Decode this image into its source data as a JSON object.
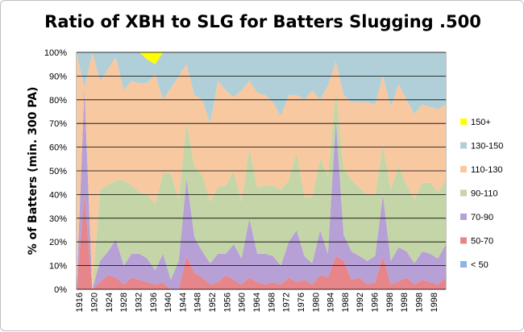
{
  "chart_data": {
    "type": "area",
    "stacked": true,
    "normalized": true,
    "title": "Ratio of XBH to SLG for Batters Slugging .500",
    "ylabel": "% of Batters (min. 300 PA)",
    "xlabel": "",
    "ylim": [
      0,
      100
    ],
    "yticks": [
      "0%",
      "10%",
      "20%",
      "30%",
      "40%",
      "50%",
      "60%",
      "70%",
      "80%",
      "90%",
      "100%"
    ],
    "xtick_labels": [
      "1916",
      "1920",
      "1924",
      "1928",
      "1932",
      "1936",
      "1940",
      "1944",
      "1948",
      "1952",
      "1956",
      "1960",
      "1964",
      "1968",
      "1972",
      "1976",
      "1980",
      "1984",
      "1988",
      "1992",
      "1996",
      "1998",
      "1998",
      "1998",
      "1998"
    ],
    "x": [
      1916,
      1918,
      1920,
      1922,
      1924,
      1926,
      1928,
      1930,
      1932,
      1934,
      1936,
      1938,
      1940,
      1942,
      1944,
      1946,
      1948,
      1950,
      1952,
      1954,
      1956,
      1958,
      1960,
      1962,
      1964,
      1966,
      1968,
      1970,
      1972,
      1974,
      1976,
      1978,
      1980,
      1982,
      1984,
      1986,
      1988,
      1990,
      1992,
      1994,
      1996,
      1998,
      2000,
      2002,
      2004,
      2006,
      2008,
      2010
    ],
    "grid": true,
    "legend_position": "right",
    "series": [
      {
        "name": "< 50",
        "color": "#8db4e2",
        "values": [
          0,
          0,
          0,
          0,
          0,
          0,
          0,
          0,
          0,
          0,
          0,
          0,
          0,
          0,
          0,
          0,
          0,
          0,
          0,
          0,
          0,
          0,
          0,
          0,
          0,
          0,
          0,
          0,
          0,
          0,
          0,
          0,
          0,
          0,
          0,
          0,
          0,
          0,
          0,
          0,
          0,
          0,
          0,
          0,
          0,
          0,
          0,
          0
        ]
      },
      {
        "name": "50-70",
        "color": "#e6858a",
        "values": [
          0,
          40,
          0,
          3,
          6,
          5,
          2,
          5,
          4,
          3,
          2,
          3,
          0,
          0,
          14,
          7,
          5,
          2,
          3,
          6,
          4,
          2,
          5,
          3,
          2,
          3,
          2,
          5,
          3,
          4,
          2,
          6,
          5,
          14,
          12,
          4,
          5,
          2,
          3,
          14,
          2,
          3,
          5,
          2,
          4,
          3,
          2,
          5
        ]
      },
      {
        "name": "70-90",
        "color": "#b6a0d6",
        "values": [
          0,
          45,
          0,
          9,
          10,
          16,
          8,
          10,
          11,
          10,
          6,
          12,
          4,
          12,
          33,
          15,
          11,
          9,
          12,
          9,
          15,
          11,
          25,
          12,
          13,
          11,
          8,
          15,
          22,
          10,
          9,
          19,
          10,
          58,
          11,
          12,
          9,
          10,
          11,
          26,
          10,
          13,
          11,
          9,
          12,
          12,
          11,
          14
        ]
      },
      {
        "name": "90-110",
        "color": "#c4d6a8",
        "values": [
          0,
          0,
          0,
          30,
          28,
          25,
          36,
          29,
          26,
          27,
          28,
          34,
          45,
          26,
          24,
          30,
          32,
          26,
          28,
          29,
          31,
          24,
          30,
          28,
          29,
          30,
          32,
          26,
          33,
          25,
          28,
          30,
          33,
          12,
          28,
          30,
          29,
          28,
          26,
          21,
          30,
          31,
          28,
          27,
          29,
          30,
          28,
          27
        ]
      },
      {
        "name": "110-130",
        "color": "#f8c8a0",
        "values": [
          100,
          0,
          100,
          46,
          49,
          52,
          38,
          44,
          46,
          47,
          55,
          31,
          36,
          52,
          24,
          30,
          32,
          33,
          45,
          40,
          31,
          47,
          28,
          40,
          38,
          35,
          31,
          36,
          24,
          41,
          45,
          25,
          38,
          12,
          31,
          33,
          36,
          39,
          38,
          29,
          35,
          31,
          36,
          36,
          33,
          32,
          35,
          32
        ]
      },
      {
        "name": "130-150",
        "color": "#b0cfd8",
        "values": [
          0,
          15,
          0,
          12,
          7,
          2,
          16,
          12,
          13,
          10,
          4,
          20,
          15,
          10,
          5,
          18,
          20,
          30,
          12,
          16,
          19,
          16,
          12,
          17,
          18,
          21,
          27,
          18,
          18,
          20,
          16,
          20,
          14,
          4,
          18,
          21,
          21,
          21,
          22,
          10,
          23,
          12,
          20,
          26,
          22,
          23,
          24,
          22
        ]
      },
      {
        "name": "150+",
        "color": "#ffff00",
        "values": [
          0,
          0,
          0,
          0,
          0,
          0,
          0,
          0,
          0,
          3,
          5,
          0,
          0,
          0,
          0,
          0,
          0,
          0,
          0,
          0,
          0,
          0,
          0,
          0,
          0,
          0,
          0,
          0,
          0,
          0,
          0,
          0,
          0,
          0,
          0,
          0,
          0,
          0,
          0,
          0,
          0,
          0,
          0,
          0,
          0,
          0,
          0,
          0
        ]
      }
    ]
  }
}
